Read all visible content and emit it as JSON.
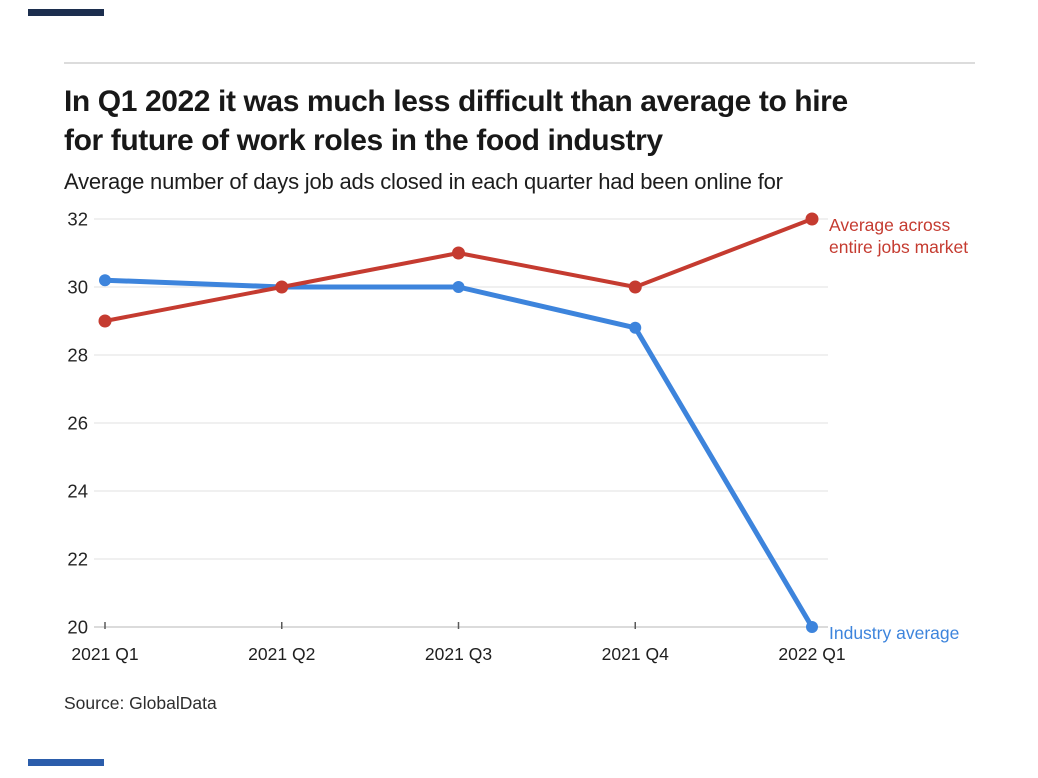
{
  "header": {
    "title_line1": "In Q1 2022 it was much less difficult than average to hire",
    "title_line2": "for future of work roles in the food industry",
    "subtitle": "Average number of days job ads closed in each quarter had been online for"
  },
  "footer": {
    "source": "Source: GlobalData"
  },
  "brand": {
    "top_bar_color": "#1c2e4e",
    "bottom_bar_color": "#2b5dab"
  },
  "chart_data": {
    "type": "line",
    "title": "In Q1 2022 it was much less difficult than average to hire for future of work roles in the food industry",
    "subtitle": "Average number of days job ads closed in each quarter had been online for",
    "categories": [
      "2021 Q1",
      "2021 Q2",
      "2021 Q3",
      "2021 Q4",
      "2022 Q1"
    ],
    "series": [
      {
        "name": "Average across entire jobs market",
        "label_lines": [
          "Average across",
          "entire jobs market"
        ],
        "color": "#c53b30",
        "stroke_width": 4,
        "dot_radius": 6.5,
        "values": [
          29,
          30,
          31,
          30,
          32
        ]
      },
      {
        "name": "Industry average",
        "label_lines": [
          "Industry average"
        ],
        "color": "#3d84dc",
        "stroke_width": 5,
        "dot_radius": 6,
        "values": [
          30.2,
          30,
          30,
          28.8,
          20
        ]
      }
    ],
    "yticks": [
      20,
      22,
      24,
      26,
      28,
      30,
      32
    ],
    "ylim": [
      20,
      32.3
    ],
    "xlabel": "",
    "ylabel": "",
    "grid": "horizontal",
    "legend_position": "end-of-line-labels",
    "source": "Source: GlobalData",
    "colors": {
      "gridline": "#e8e8e8",
      "axis_line": "#cfcfcf",
      "tick": "#5a5a5a",
      "axis_text": "#242424"
    }
  }
}
